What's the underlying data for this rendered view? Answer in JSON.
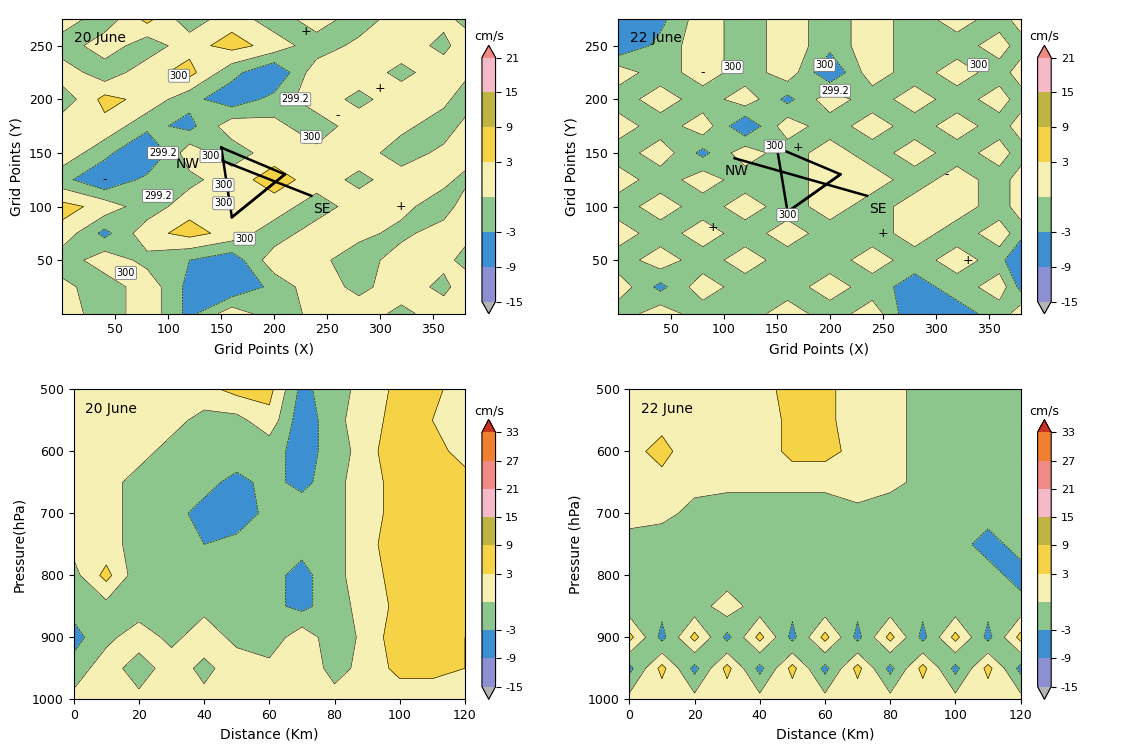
{
  "chart_data": [
    {
      "type": "contour",
      "title": "20 June",
      "xlabel": "Grid Points (X)",
      "ylabel": "Grid Points (Y)",
      "xlim": [
        0,
        380
      ],
      "ylim": [
        0,
        275
      ],
      "xticks": [
        50,
        100,
        150,
        200,
        250,
        300,
        350
      ],
      "yticks": [
        50,
        100,
        150,
        200,
        250
      ],
      "x": [
        0,
        40,
        80,
        120,
        160,
        200,
        240,
        280,
        320,
        360,
        380
      ],
      "y": [
        0,
        25,
        50,
        75,
        100,
        125,
        150,
        175,
        200,
        225,
        250,
        275
      ],
      "values": [
        [
          2,
          -2,
          2,
          -4,
          2,
          -2,
          1,
          2,
          -1,
          2,
          1
        ],
        [
          1,
          -2,
          2,
          -4,
          -6,
          -2,
          2,
          -1,
          2,
          -1,
          2
        ],
        [
          -2,
          2,
          -1,
          -3,
          -5,
          2,
          1,
          -2,
          2,
          1,
          -1
        ],
        [
          2,
          -4,
          2,
          4,
          2,
          -2,
          2,
          1,
          -1,
          2,
          1
        ],
        [
          4,
          2,
          -2,
          2,
          1,
          2,
          -2,
          2,
          1,
          -2,
          2
        ],
        [
          -2,
          -6,
          -2,
          -1,
          2,
          4,
          2,
          -1,
          2,
          1,
          -1
        ],
        [
          2,
          -2,
          -7,
          2,
          -2,
          2,
          1,
          2,
          -2,
          1,
          2
        ],
        [
          2,
          2,
          -2,
          -4,
          2,
          1,
          -2,
          2,
          1,
          -2,
          1
        ],
        [
          -2,
          4,
          2,
          -2,
          -5,
          -2,
          2,
          -1,
          2,
          1,
          -2
        ],
        [
          2,
          -2,
          2,
          4,
          -2,
          -6,
          2,
          2,
          -1,
          2,
          1
        ],
        [
          -2,
          2,
          -2,
          2,
          4,
          2,
          -2,
          1,
          2,
          -1,
          2
        ],
        [
          2,
          -2,
          4,
          -2,
          2,
          -2,
          2,
          -2,
          2,
          1,
          -1
        ]
      ],
      "levels": [
        -15,
        -9,
        -3,
        0,
        3,
        9,
        15,
        21
      ],
      "colors": [
        "#b4b4b4",
        "#8c8fd2",
        "#3c8fd0",
        "#8cc68c",
        "#f6f0b4",
        "#f5d246",
        "#bdb443",
        "#f5b9c8",
        "#f08a84"
      ],
      "colorbar": {
        "label": "cm/s",
        "ticks": [
          -15,
          -9,
          -3,
          3,
          9,
          15,
          21
        ]
      },
      "paths": [
        {
          "x": [
            150,
            210,
            160,
            150
          ],
          "y": [
            155,
            130,
            90,
            155
          ]
        },
        {
          "x": [
            145,
            235
          ],
          "y": [
            145,
            110
          ]
        },
        {
          "x": [
            160,
            210
          ],
          "y": [
            90,
            130
          ]
        }
      ],
      "annotations": [
        {
          "text": "NW",
          "x": 118,
          "y": 140
        },
        {
          "text": "SE",
          "x": 245,
          "y": 98
        },
        {
          "text": "300",
          "x": 110,
          "y": 222
        },
        {
          "text": "300",
          "x": 140,
          "y": 147
        },
        {
          "text": "300",
          "x": 152,
          "y": 120
        },
        {
          "text": "300",
          "x": 152,
          "y": 103
        },
        {
          "text": "300",
          "x": 172,
          "y": 70
        },
        {
          "text": "300",
          "x": 235,
          "y": 165
        },
        {
          "text": "300",
          "x": 60,
          "y": 38
        },
        {
          "text": "299.2",
          "x": 95,
          "y": 150
        },
        {
          "text": "299.2",
          "x": 90,
          "y": 110
        },
        {
          "text": "299.2",
          "x": 220,
          "y": 200
        },
        {
          "text": "+",
          "x": 230,
          "y": 263
        },
        {
          "text": "+",
          "x": 300,
          "y": 210
        },
        {
          "text": "-",
          "x": 260,
          "y": 185
        },
        {
          "text": "+",
          "x": 320,
          "y": 100
        },
        {
          "text": "-",
          "x": 40,
          "y": 125
        }
      ]
    },
    {
      "type": "contour",
      "title": "22 June",
      "xlabel": "Grid Points (X)",
      "ylabel": "Grid Points (Y)",
      "xlim": [
        0,
        380
      ],
      "ylim": [
        0,
        275
      ],
      "xticks": [
        50,
        100,
        150,
        200,
        250,
        300,
        350
      ],
      "yticks": [
        50,
        100,
        150,
        200,
        250
      ],
      "x": [
        0,
        40,
        80,
        120,
        160,
        200,
        240,
        280,
        320,
        360,
        380
      ],
      "y": [
        0,
        25,
        50,
        75,
        100,
        125,
        150,
        175,
        200,
        225,
        250,
        275
      ],
      "values": [
        [
          -2,
          2,
          -2,
          -2,
          2,
          -2,
          2,
          -6,
          -4,
          -2,
          2
        ],
        [
          2,
          -4,
          2,
          -2,
          -2,
          2,
          -2,
          -4,
          -2,
          2,
          -4
        ],
        [
          -2,
          2,
          -2,
          2,
          -2,
          -2,
          2,
          -2,
          2,
          -2,
          -6
        ],
        [
          2,
          -2,
          2,
          -2,
          2,
          -2,
          -2,
          2,
          -2,
          2,
          -2
        ],
        [
          -2,
          2,
          -2,
          2,
          -2,
          2,
          -2,
          2,
          2,
          -2,
          2
        ],
        [
          2,
          -2,
          2,
          -2,
          -2,
          2,
          2,
          -2,
          2,
          -2,
          2
        ],
        [
          -2,
          2,
          -4,
          2,
          -2,
          2,
          -2,
          2,
          -2,
          2,
          -2
        ],
        [
          2,
          -2,
          2,
          -6,
          2,
          -2,
          2,
          -2,
          2,
          -2,
          2
        ],
        [
          -2,
          2,
          -2,
          2,
          -4,
          2,
          -2,
          2,
          -2,
          2,
          -2
        ],
        [
          2,
          -2,
          2,
          -2,
          2,
          -6,
          2,
          -2,
          2,
          -2,
          2
        ],
        [
          -6,
          -2,
          2,
          -2,
          2,
          -2,
          2,
          -2,
          -2,
          2,
          -2
        ],
        [
          -8,
          -4,
          2,
          -2,
          2,
          -2,
          2,
          -2,
          2,
          -2,
          2
        ]
      ],
      "levels": [
        -15,
        -9,
        -3,
        0,
        3,
        9,
        15,
        21
      ],
      "colors": [
        "#b4b4b4",
        "#8c8fd2",
        "#3c8fd0",
        "#8cc68c",
        "#f6f0b4",
        "#f5d246",
        "#bdb443",
        "#f5b9c8",
        "#f08a84"
      ],
      "colorbar": {
        "label": "cm/s",
        "ticks": [
          -15,
          -9,
          -3,
          3,
          9,
          15,
          21
        ]
      },
      "paths": [
        {
          "x": [
            150,
            210,
            160,
            150
          ],
          "y": [
            155,
            130,
            95,
            155
          ]
        },
        {
          "x": [
            110,
            235
          ],
          "y": [
            145,
            110
          ]
        },
        {
          "x": [
            160,
            210
          ],
          "y": [
            95,
            130
          ]
        }
      ],
      "annotations": [
        {
          "text": "NW",
          "x": 112,
          "y": 133
        },
        {
          "text": "SE",
          "x": 245,
          "y": 98
        },
        {
          "text": "300",
          "x": 108,
          "y": 230
        },
        {
          "text": "300",
          "x": 195,
          "y": 232
        },
        {
          "text": "300",
          "x": 148,
          "y": 156
        },
        {
          "text": "300",
          "x": 160,
          "y": 92
        },
        {
          "text": "300",
          "x": 340,
          "y": 232
        },
        {
          "text": "299.2",
          "x": 205,
          "y": 208
        },
        {
          "text": "+",
          "x": 170,
          "y": 155
        },
        {
          "text": "+",
          "x": 90,
          "y": 80
        },
        {
          "text": "-",
          "x": 80,
          "y": 225
        },
        {
          "text": "+",
          "x": 250,
          "y": 75
        },
        {
          "text": "-",
          "x": 310,
          "y": 130
        },
        {
          "text": "+",
          "x": 330,
          "y": 50
        }
      ]
    },
    {
      "type": "contour",
      "title": "20 June",
      "xlabel": "Distance (Km)",
      "ylabel": "Pressure(hPa)",
      "xlim": [
        0,
        120
      ],
      "ylim": [
        1000,
        500
      ],
      "xticks": [
        0,
        20,
        40,
        60,
        80,
        100,
        120
      ],
      "yticks": [
        500,
        600,
        700,
        800,
        900,
        1000
      ],
      "x": [
        0,
        10,
        20,
        30,
        40,
        50,
        60,
        70,
        80,
        90,
        100,
        110,
        120
      ],
      "y": [
        1000,
        950,
        900,
        850,
        800,
        750,
        700,
        650,
        600,
        550,
        500
      ],
      "values": [
        [
          1,
          1,
          1,
          1,
          1,
          1,
          1,
          1,
          1,
          1,
          1,
          1,
          1
        ],
        [
          -2,
          2,
          -2,
          2,
          -1,
          2,
          1,
          2,
          -1,
          1,
          4,
          4,
          3
        ],
        [
          -4,
          -1,
          2,
          -1,
          2,
          -1,
          -2,
          2,
          -2,
          1,
          5,
          4,
          3
        ],
        [
          -2,
          -1,
          -2,
          -2,
          -1,
          -1,
          -2,
          -4,
          -1,
          1,
          4,
          5,
          4
        ],
        [
          -1,
          4,
          -2,
          -1,
          -2,
          -2,
          -2,
          -4,
          -1,
          2,
          4,
          6,
          4
        ],
        [
          1,
          1,
          -1,
          -2,
          -3,
          -2,
          -2,
          -2,
          -1,
          2,
          5,
          4,
          5
        ],
        [
          1,
          1,
          -1,
          -2,
          -4,
          -5,
          -2,
          -1,
          -1,
          2,
          4,
          5,
          5
        ],
        [
          1,
          1,
          -1,
          -2,
          -2,
          -4,
          -2,
          -4,
          -1,
          2,
          4,
          4,
          4
        ],
        [
          2,
          2,
          1,
          -1,
          -1,
          -1,
          -2,
          -4,
          -2,
          2,
          5,
          4,
          2
        ],
        [
          2,
          2,
          2,
          1,
          -1,
          -1,
          2,
          -5,
          -1,
          2,
          4,
          3,
          2
        ],
        [
          2,
          2,
          2,
          1,
          2,
          4,
          4,
          -4,
          -1,
          1,
          4,
          4,
          1
        ]
      ],
      "levels": [
        -15,
        -9,
        -3,
        0,
        3,
        9,
        15,
        21,
        27,
        33
      ],
      "colors": [
        "#b4b4b4",
        "#8c8fd2",
        "#3c8fd0",
        "#8cc68c",
        "#f6f0b4",
        "#f5d246",
        "#bdb443",
        "#f5b9c8",
        "#f08a84",
        "#f08030",
        "#c83020"
      ],
      "colorbar": {
        "label": "cm/s",
        "ticks": [
          -15,
          -9,
          -3,
          3,
          9,
          15,
          21,
          27,
          33
        ]
      },
      "paths": [],
      "annotations": []
    },
    {
      "type": "contour",
      "title": "22 June",
      "xlabel": "Distance (Km)",
      "ylabel": "Pressure (hPa)",
      "xlim": [
        0,
        120
      ],
      "ylim": [
        1000,
        500
      ],
      "xticks": [
        0,
        20,
        40,
        60,
        80,
        100,
        120
      ],
      "yticks": [
        500,
        600,
        700,
        800,
        900,
        1000
      ],
      "x": [
        0,
        10,
        20,
        30,
        40,
        50,
        60,
        70,
        80,
        90,
        100,
        110,
        120
      ],
      "y": [
        1000,
        950,
        900,
        850,
        800,
        750,
        700,
        650,
        600,
        550,
        500
      ],
      "values": [
        [
          1,
          1,
          1,
          1,
          1,
          1,
          1,
          1,
          1,
          1,
          1,
          1,
          1
        ],
        [
          -4,
          4,
          -4,
          4,
          -4,
          4,
          -4,
          4,
          -4,
          4,
          -4,
          4,
          -4
        ],
        [
          4,
          -4,
          4,
          -4,
          4,
          -4,
          4,
          -4,
          4,
          -4,
          4,
          -4,
          4
        ],
        [
          -2,
          -2,
          -2,
          2,
          -2,
          -2,
          -2,
          -2,
          -2,
          -2,
          -2,
          -2,
          -2
        ],
        [
          -2,
          -2,
          -2,
          -2,
          -2,
          -2,
          -2,
          -2,
          -2,
          -2,
          -2,
          -2,
          -4
        ],
        [
          -1,
          -2,
          -2,
          -2,
          -2,
          -2,
          -1,
          -2,
          -2,
          -2,
          -2,
          -4,
          -2
        ],
        [
          1,
          1,
          -1,
          -2,
          -2,
          -2,
          -2,
          -1,
          -2,
          -2,
          -2,
          -2,
          -2
        ],
        [
          2,
          2,
          1,
          1,
          1,
          1,
          1,
          2,
          1,
          -1,
          -2,
          -2,
          -2
        ],
        [
          2,
          4,
          1,
          1,
          1,
          4,
          4,
          2,
          1,
          -1,
          -2,
          -2,
          -1
        ],
        [
          2,
          2,
          1,
          1,
          1,
          4,
          4,
          1,
          1,
          -1,
          -1,
          -2,
          -1
        ],
        [
          2,
          2,
          1,
          1,
          2,
          4,
          4,
          1,
          1,
          -1,
          -1,
          -1,
          -1
        ]
      ],
      "levels": [
        -15,
        -9,
        -3,
        0,
        3,
        9,
        15,
        21,
        27,
        33
      ],
      "colors": [
        "#b4b4b4",
        "#8c8fd2",
        "#3c8fd0",
        "#8cc68c",
        "#f6f0b4",
        "#f5d246",
        "#bdb443",
        "#f5b9c8",
        "#f08a84",
        "#f08030",
        "#c83020"
      ],
      "colorbar": {
        "label": "cm/s",
        "ticks": [
          -15,
          -9,
          -3,
          3,
          9,
          15,
          21,
          27,
          33
        ]
      },
      "paths": [],
      "annotations": []
    }
  ]
}
